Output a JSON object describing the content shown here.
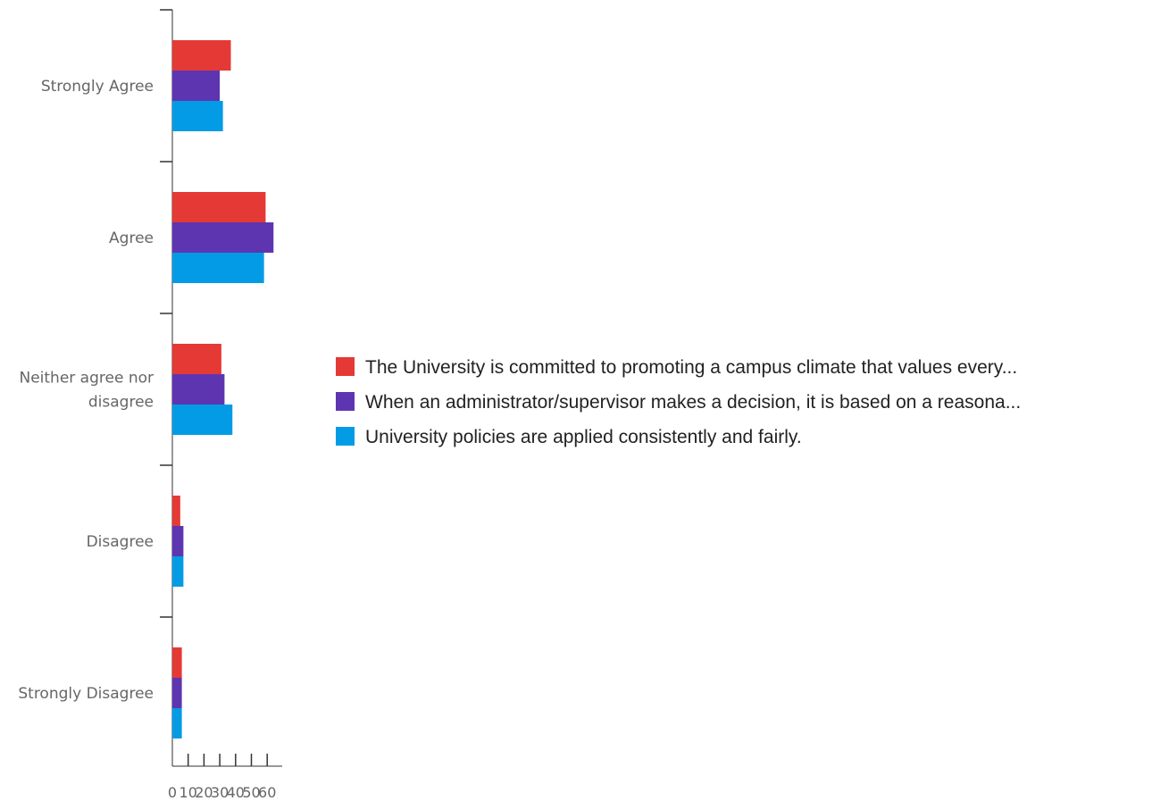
{
  "chart_data": {
    "type": "bar",
    "orientation": "horizontal",
    "categories": [
      "Strongly Agree",
      "Agree",
      "Neither agree nor disagree",
      "Disagree",
      "Strongly Disagree"
    ],
    "series": [
      {
        "name": "The University is committed to promoting a campus climate that values every...",
        "color": "#e53935",
        "values": [
          37,
          59,
          31,
          5,
          6
        ]
      },
      {
        "name": "When an administrator/supervisor makes a decision, it is based on a reasona...",
        "color": "#5e35b1",
        "values": [
          30,
          64,
          33,
          7,
          6
        ]
      },
      {
        "name": "University policies are applied consistently and fairly.",
        "color": "#039be5",
        "values": [
          32,
          58,
          38,
          7,
          6
        ]
      }
    ],
    "x_ticks": [
      "0",
      "10",
      "20",
      "30",
      "40",
      "50",
      "60"
    ],
    "xlim": [
      0,
      70
    ],
    "grid": false,
    "legend_position": "right"
  }
}
